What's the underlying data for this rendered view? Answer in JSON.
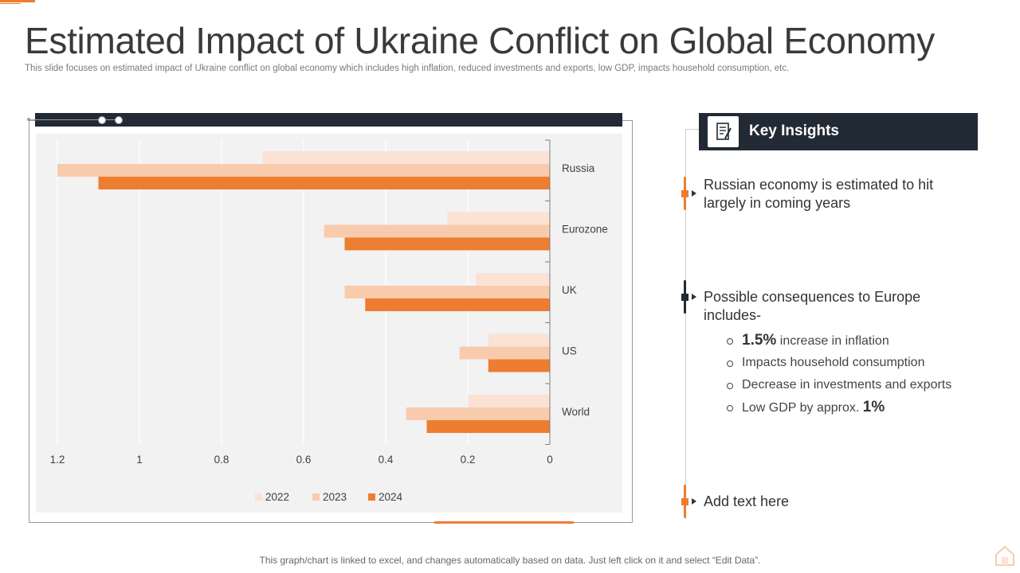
{
  "slide": {
    "title": "Estimated Impact of Ukraine Conflict on Global Economy",
    "subtitle": "This slide focuses on estimated impact of Ukraine conflict on global economy which includes high inflation, reduced investments and exports, low GDP,  impacts household consumption, etc.",
    "footer": "This graph/chart is linked to excel, and changes automatically based on data. Just left click on it and select “Edit Data”."
  },
  "colors": {
    "accent": "#ed7d31",
    "dark": "#222a35",
    "series_2022": "#fbe2d5",
    "series_2023": "#f8cbad",
    "series_2024": "#ed7d31"
  },
  "insights": {
    "header": "Key Insights",
    "header_icon": "document-pen-icon",
    "point1": "Russian economy is estimated to hit largely in coming years",
    "point2": "Possible consequences to Europe includes-",
    "bullets": [
      {
        "strong": "1.5%",
        "text": " increase in inflation"
      },
      {
        "strong": "",
        "text": "Impacts household consumption"
      },
      {
        "strong": "",
        "text": "Decrease in investments  and exports"
      },
      {
        "strong": "1%",
        "text": "Low GDP by approx. "
      }
    ],
    "point3": "Add text here"
  },
  "chart_data": {
    "type": "bar",
    "orientation": "horizontal",
    "x_reversed": true,
    "categories": [
      "Russia",
      "Eurozone",
      "UK",
      "US",
      "World"
    ],
    "series": [
      {
        "name": "2022",
        "values": [
          0.7,
          0.25,
          0.18,
          0.15,
          0.2
        ]
      },
      {
        "name": "2023",
        "values": [
          1.2,
          0.55,
          0.5,
          0.22,
          0.35
        ]
      },
      {
        "name": "2024",
        "values": [
          1.1,
          0.5,
          0.45,
          0.15,
          0.3
        ]
      }
    ],
    "xlim": [
      0,
      1.2
    ],
    "xticks": [
      "1.2",
      "1",
      "0.8",
      "0.6",
      "0.4",
      "0.2",
      "0"
    ],
    "grid": true,
    "legend": "bottom"
  }
}
